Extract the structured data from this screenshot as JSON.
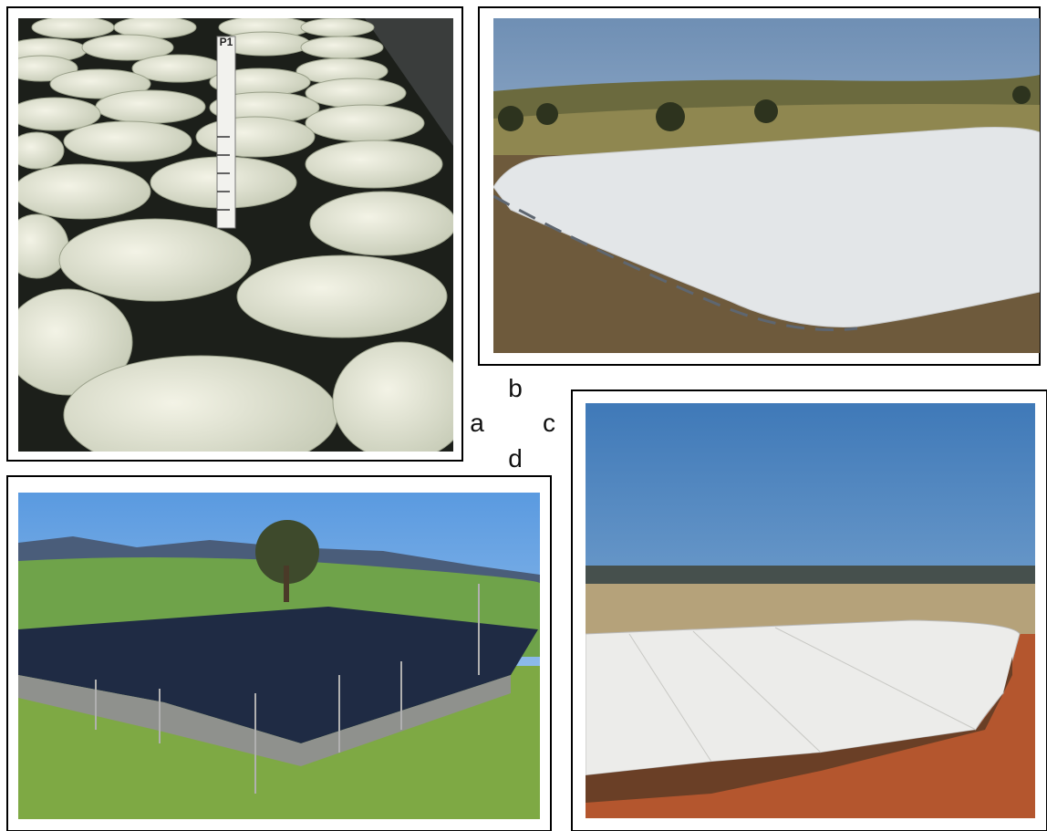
{
  "labels": {
    "a": "a",
    "b": "b",
    "c": "c",
    "d": "d"
  },
  "photo_a": {
    "gauge_label": "P1"
  }
}
